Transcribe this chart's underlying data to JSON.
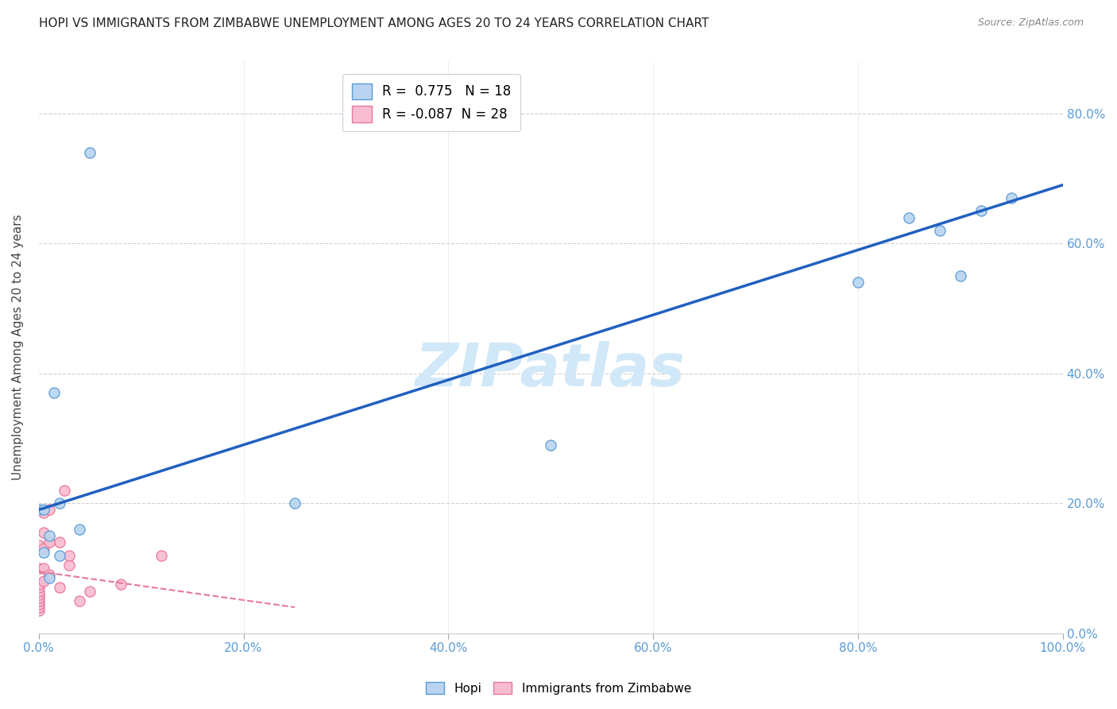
{
  "title": "HOPI VS IMMIGRANTS FROM ZIMBABWE UNEMPLOYMENT AMONG AGES 20 TO 24 YEARS CORRELATION CHART",
  "source": "Source: ZipAtlas.com",
  "ylabel": "Unemployment Among Ages 20 to 24 years",
  "xlim": [
    0.0,
    1.0
  ],
  "ylim": [
    0.0,
    0.88
  ],
  "hopi_R": 0.775,
  "hopi_N": 18,
  "zimb_R": -0.087,
  "zimb_N": 28,
  "hopi_color": "#b8d4f0",
  "hopi_edge_color": "#5b9bd5",
  "zimb_color": "#f8bcd0",
  "zimb_edge_color": "#e8789a",
  "trendline_hopi_color": "#2060c0",
  "trendline_zimb_color": "#e8789a",
  "grid_color": "#d0d0d0",
  "watermark": "ZIPatlas",
  "watermark_color": "#d0e8f8",
  "hopi_scatter_x": [
    0.0,
    0.005,
    0.01,
    0.01,
    0.015,
    0.02,
    0.04,
    0.25,
    0.5,
    0.8,
    0.85,
    0.88,
    0.9,
    0.92,
    0.95,
    0.05,
    0.02,
    0.005
  ],
  "hopi_scatter_y": [
    0.19,
    0.19,
    0.15,
    0.085,
    0.37,
    0.12,
    0.16,
    0.2,
    0.29,
    0.54,
    0.64,
    0.62,
    0.55,
    0.65,
    0.67,
    0.74,
    0.2,
    0.125
  ],
  "zimb_scatter_x": [
    0.0,
    0.0,
    0.0,
    0.0,
    0.0,
    0.0,
    0.0,
    0.0,
    0.0,
    0.0,
    0.0,
    0.005,
    0.005,
    0.005,
    0.005,
    0.005,
    0.01,
    0.01,
    0.01,
    0.02,
    0.02,
    0.025,
    0.03,
    0.03,
    0.04,
    0.05,
    0.08,
    0.12
  ],
  "zimb_scatter_y": [
    0.035,
    0.04,
    0.045,
    0.05,
    0.055,
    0.06,
    0.065,
    0.07,
    0.075,
    0.1,
    0.135,
    0.08,
    0.1,
    0.13,
    0.155,
    0.185,
    0.09,
    0.14,
    0.19,
    0.07,
    0.14,
    0.22,
    0.105,
    0.12,
    0.05,
    0.065,
    0.075,
    0.12
  ],
  "title_fontsize": 11,
  "axis_tick_color": "#5b9bd5",
  "marker_size": 90,
  "hopi_trendline_x": [
    0.0,
    1.0
  ],
  "hopi_trendline_y": [
    0.19,
    0.69
  ],
  "zimb_trendline_x": [
    0.0,
    0.25
  ],
  "zimb_trendline_y": [
    0.095,
    0.04
  ]
}
